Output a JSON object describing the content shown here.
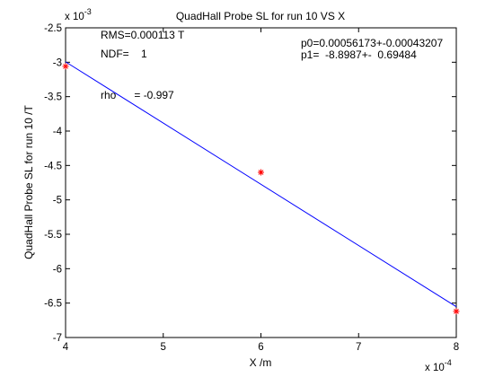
{
  "chart_data": {
    "type": "scatter",
    "title": "QuadHall Probe SL for run 10 VS X",
    "xlabel": "X /m",
    "ylabel": "QuadHall Probe SL for run 10 /T",
    "x_multiplier_label": "x 10",
    "x_multiplier_exponent": "-4",
    "y_multiplier_label": "x 10",
    "y_multiplier_exponent": "-3",
    "xlim": [
      4,
      8
    ],
    "ylim": [
      -7,
      -2.5
    ],
    "x_ticks": [
      4,
      5,
      6,
      7,
      8
    ],
    "y_ticks": [
      -7,
      -6.5,
      -6,
      -5.5,
      -5,
      -4.5,
      -4,
      -3.5,
      -3,
      -2.5
    ],
    "x_tick_labels": [
      "4",
      "5",
      "6",
      "7",
      "8"
    ],
    "y_tick_labels": [
      "-7",
      "-6.5",
      "-6",
      "-5.5",
      "-5",
      "-4.5",
      "-4",
      "-3.5",
      "-3",
      "-2.5"
    ],
    "grid": false,
    "points": {
      "x": [
        4,
        6,
        8
      ],
      "y": [
        -3.06,
        -4.6,
        -6.62
      ],
      "color": "#ff0000",
      "marker": "asterisk"
    },
    "fit_line": {
      "x": [
        4,
        8
      ],
      "y": [
        -2.994,
        -6.553
      ],
      "color": "#0000ff"
    },
    "annotations": {
      "rms": "RMS=0.000113 T",
      "ndf": "NDF=    1",
      "rho": "rho      = -0.997",
      "p0": "p0=0.00056173+-0.00043207",
      "p1": "p1=  -8.8987+-  0.69484"
    }
  }
}
